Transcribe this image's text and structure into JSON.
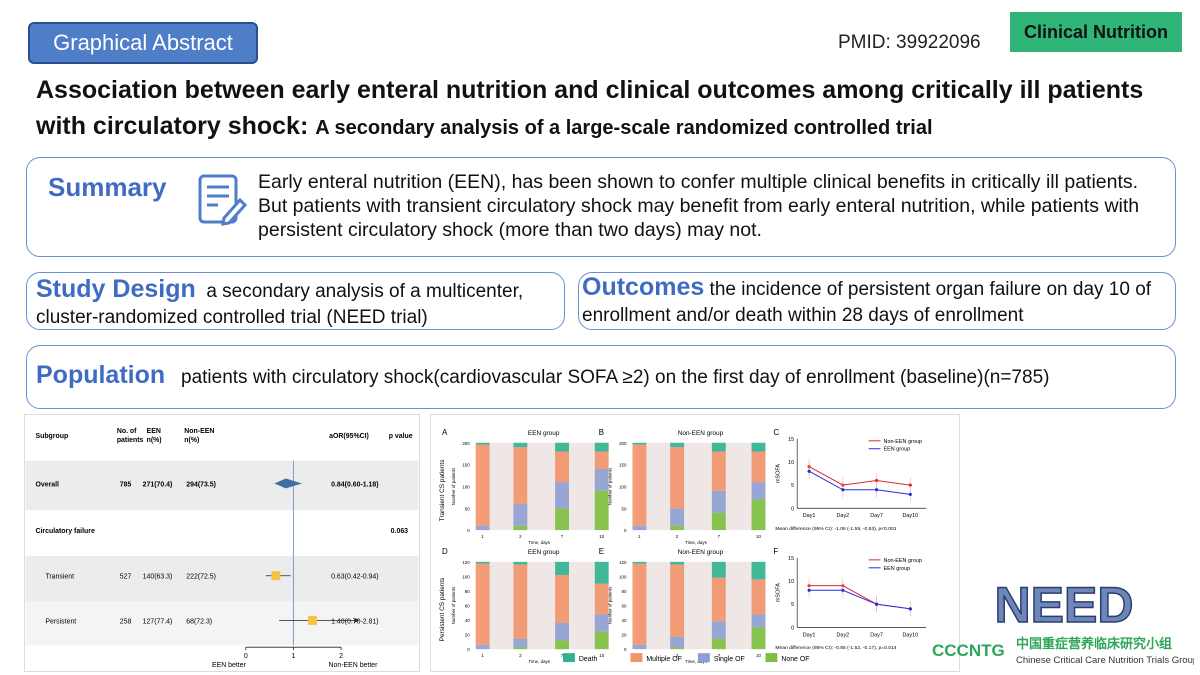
{
  "header": {
    "badge": "Graphical Abstract",
    "pmid": "PMID: 39922096",
    "journal": "Clinical Nutrition"
  },
  "title": {
    "main": "Association between early enteral nutrition and clinical outcomes among critically ill patients with circulatory shock:",
    "sub": "A secondary analysis of a large-scale randomized controlled trial"
  },
  "summary": {
    "heading": "Summary",
    "icon": "document-edit-icon",
    "text": "Early enteral nutrition (EEN), has been shown to confer multiple clinical benefits in critically ill patients. But patients with transient circulatory shock may benefit from early enteral nutrition, while patients with persistent circulatory shock (more than two days) may not."
  },
  "study_design": {
    "heading": "Study Design",
    "text": "a secondary analysis of a multicenter, cluster-randomized controlled trial (NEED trial)"
  },
  "outcomes": {
    "heading": "Outcomes",
    "text": "the incidence of persistent organ failure on day 10 of enrollment and/or death within 28 days of enrollment"
  },
  "population": {
    "heading": "Population",
    "text": "patients with circulatory shock(cardiovascular SOFA ≥2) on the first day of enrollment (baseline)(n=785)"
  },
  "forest": {
    "columns": [
      "Subgroup",
      "No. of patients",
      "EEN n(%)",
      "Non-EEN n(%)",
      "aOR(95%CI)",
      "p value"
    ],
    "rows": [
      {
        "label": "Overall",
        "n": "785",
        "een": "271(70.4)",
        "non": "294(73.5)",
        "aor": "0.84(0.60-1.18)",
        "p": "",
        "est": 0.84,
        "lo": 0.6,
        "hi": 1.18,
        "bold": true
      },
      {
        "label": "Circulatory failure",
        "n": "",
        "een": "",
        "non": "",
        "aor": "",
        "p": "0.063",
        "bold": true
      },
      {
        "label": "Transient",
        "n": "527",
        "een": "140(63.3)",
        "non": "222(72.5)",
        "aor": "0.63(0.42-0.94)",
        "p": "",
        "est": 0.63,
        "lo": 0.42,
        "hi": 0.94
      },
      {
        "label": "Persistent",
        "n": "258",
        "een": "127(77.4)",
        "non": "68(72.3)",
        "aor": "1.40(0.70-2.81)",
        "p": "",
        "est": 1.4,
        "lo": 0.7,
        "hi": 2.81
      }
    ],
    "axis_ticks": [
      "0",
      "1",
      "2"
    ],
    "left_label": "EEN better",
    "right_label": "Non-EEN better"
  },
  "fig2": {
    "panels": [
      "A",
      "B",
      "C",
      "D",
      "E",
      "F"
    ],
    "panel_titles": [
      "EEN group",
      "Non-EEN group",
      "EEN group",
      "Non-EEN group"
    ],
    "row_labels": [
      "Transient CS patients",
      "Persistent CS patients"
    ],
    "ylabel_small": "Number of patients",
    "xlabel": "Time, days",
    "x_ticks": [
      "1",
      "2",
      "7",
      "10"
    ],
    "yticks_top": [
      "0",
      "50",
      "100",
      "150",
      "200"
    ],
    "yticks_bot": [
      "0",
      "20",
      "40",
      "60",
      "80",
      "100",
      "120"
    ],
    "legend": [
      {
        "label": "Death",
        "color": "#2fb38f"
      },
      {
        "label": "Multiple OF",
        "color": "#f2936a"
      },
      {
        "label": "Single OF",
        "color": "#8e9fd1"
      },
      {
        "label": "None OF",
        "color": "#7dbf3e"
      }
    ],
    "line_legend": [
      "Non-EEN group",
      "EEN group"
    ],
    "line_colors": {
      "non": "#e02a2a",
      "een": "#2a2ae0"
    },
    "line_ylabel": "mSOFA",
    "line_x": [
      "Day1",
      "Day2",
      "Day7",
      "Day10"
    ],
    "line_yticks": [
      "0",
      "5",
      "10",
      "15"
    ],
    "C_note": "Mean difference (95% CI): -1.06 (-1.59, -0.53), p<0.001",
    "F_note": "Mean difference (95% CI): -0.85 (-1.52, -0.17), p=0.014"
  },
  "chart_data": [
    {
      "type": "line",
      "panel": "C",
      "x": [
        "Day1",
        "Day2",
        "Day7",
        "Day10"
      ],
      "ylabel": "mSOFA",
      "ylim": [
        0,
        15
      ],
      "series": [
        {
          "name": "Non-EEN group",
          "values": [
            9,
            5,
            6,
            5
          ]
        },
        {
          "name": "EEN group",
          "values": [
            8,
            4,
            4,
            3
          ]
        }
      ]
    },
    {
      "type": "line",
      "panel": "F",
      "x": [
        "Day1",
        "Day2",
        "Day7",
        "Day10"
      ],
      "ylabel": "mSOFA",
      "ylim": [
        0,
        15
      ],
      "series": [
        {
          "name": "Non-EEN group",
          "values": [
            9,
            9,
            5,
            4
          ]
        },
        {
          "name": "EEN group",
          "values": [
            8,
            8,
            5,
            4
          ]
        }
      ]
    }
  ],
  "logos": {
    "need": "NEED",
    "cccntg": "CCCNTG",
    "cn_name": "中国重症营养临床研究小组",
    "en_name": "Chinese Critical Care Nutrition Trials Group"
  }
}
